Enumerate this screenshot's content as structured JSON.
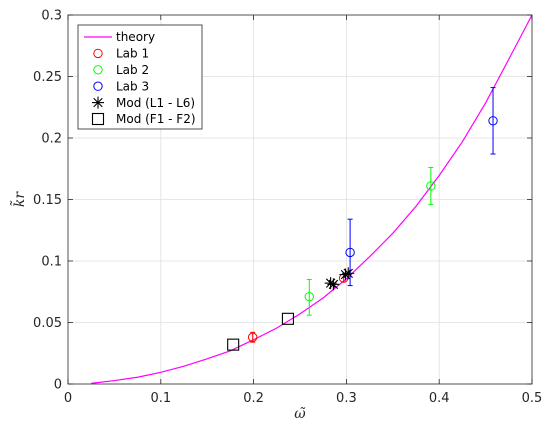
{
  "chart_data": {
    "type": "scatter",
    "title": "",
    "xlabel": "ω̃",
    "ylabel": "k̃r",
    "xlim": [
      0,
      0.5
    ],
    "ylim": [
      0,
      0.3
    ],
    "xticks": [
      0,
      0.1,
      0.2,
      0.3,
      0.4,
      0.5
    ],
    "xtick_labels": [
      "0",
      "0.1",
      "0.2",
      "0.3",
      "0.4",
      "0.5"
    ],
    "yticks": [
      0,
      0.05,
      0.1,
      0.15,
      0.2,
      0.25,
      0.3
    ],
    "ytick_labels": [
      "0",
      "0.05",
      "0.1",
      "0.15",
      "0.2",
      "0.25",
      "0.3"
    ],
    "grid": true,
    "legend_position": "top-left",
    "series": [
      {
        "name": "theory",
        "kind": "line",
        "color": "#ff00ff",
        "x": [
          0.025,
          0.05,
          0.075,
          0.1,
          0.125,
          0.15,
          0.175,
          0.2,
          0.225,
          0.25,
          0.275,
          0.3,
          0.325,
          0.35,
          0.375,
          0.4,
          0.425,
          0.45,
          0.475,
          0.5
        ],
        "y": [
          0.0005,
          0.0028,
          0.0055,
          0.0095,
          0.0145,
          0.0205,
          0.027,
          0.036,
          0.0455,
          0.057,
          0.07,
          0.0855,
          0.1035,
          0.1225,
          0.1445,
          0.1695,
          0.197,
          0.2285,
          0.264,
          0.3
        ]
      },
      {
        "name": "Lab 1",
        "kind": "circle",
        "color": "#ff0000",
        "points": [
          {
            "x": 0.199,
            "y": 0.038,
            "ylow": 0.034,
            "yhigh": 0.042
          },
          {
            "x": 0.297,
            "y": 0.086,
            "ylow": 0.083,
            "yhigh": 0.089
          }
        ]
      },
      {
        "name": "Lab 2",
        "kind": "circle",
        "color": "#00ff00",
        "points": [
          {
            "x": 0.26,
            "y": 0.071,
            "ylow": 0.056,
            "yhigh": 0.085
          },
          {
            "x": 0.391,
            "y": 0.161,
            "ylow": 0.146,
            "yhigh": 0.176
          }
        ]
      },
      {
        "name": "Lab 3",
        "kind": "circle",
        "color": "#0000ff",
        "points": [
          {
            "x": 0.304,
            "y": 0.107,
            "ylow": 0.08,
            "yhigh": 0.134
          },
          {
            "x": 0.458,
            "y": 0.214,
            "ylow": 0.187,
            "yhigh": 0.241
          }
        ]
      },
      {
        "name": "Mod (L1 - L6)",
        "kind": "asterisk",
        "color": "#000000",
        "points": [
          {
            "x": 0.283,
            "y": 0.082
          },
          {
            "x": 0.286,
            "y": 0.081
          },
          {
            "x": 0.299,
            "y": 0.089
          },
          {
            "x": 0.302,
            "y": 0.09
          }
        ]
      },
      {
        "name": "Mod (F1 - F2)",
        "kind": "square",
        "color": "#000000",
        "points": [
          {
            "x": 0.178,
            "y": 0.032
          },
          {
            "x": 0.237,
            "y": 0.053
          }
        ]
      }
    ]
  }
}
